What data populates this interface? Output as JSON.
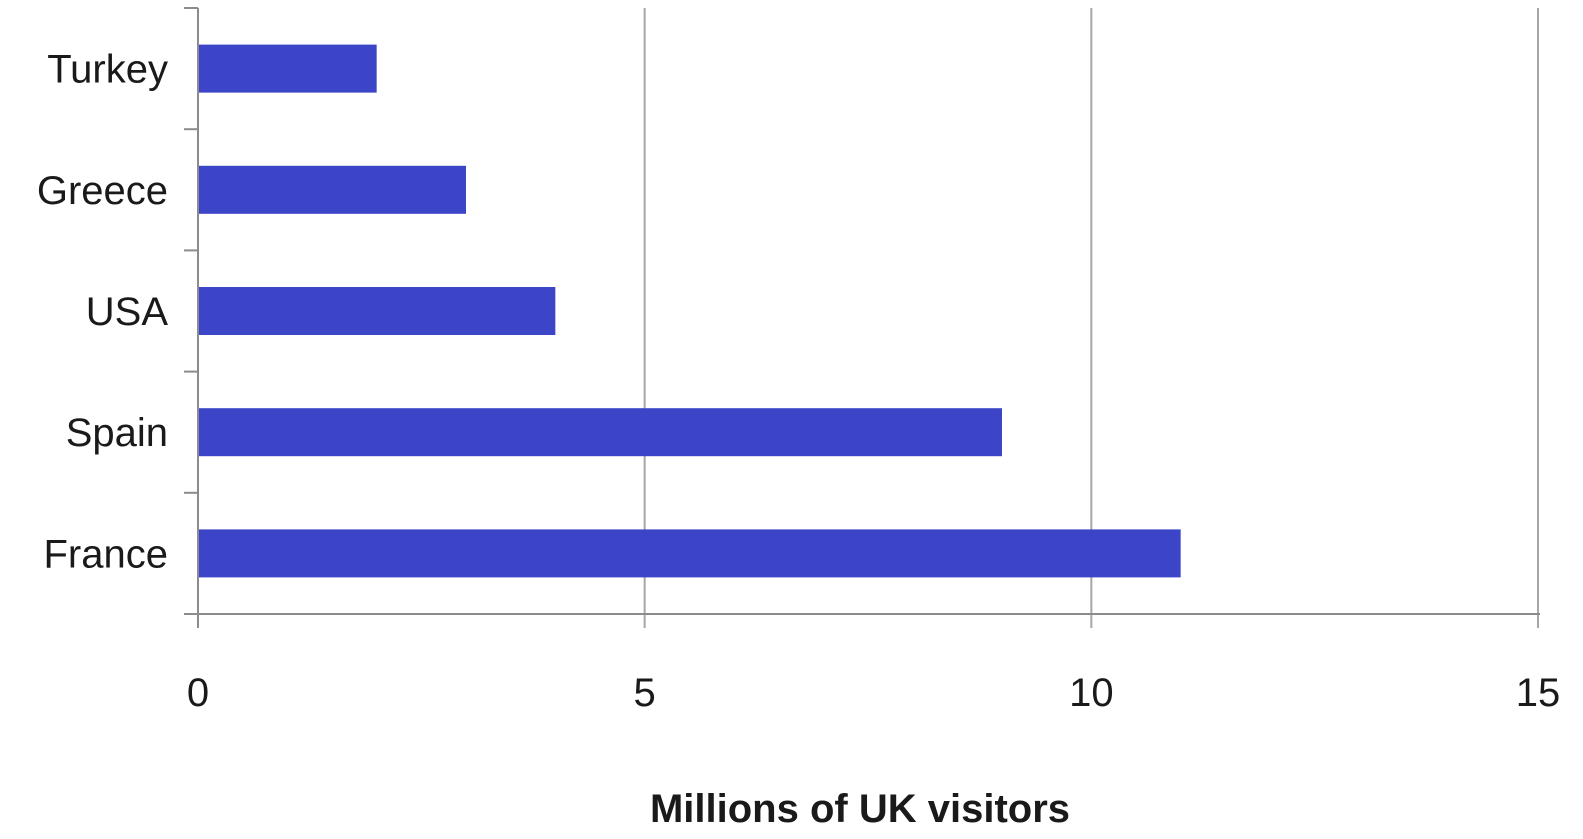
{
  "chart_data": {
    "type": "bar",
    "orientation": "horizontal",
    "categories": [
      "France",
      "Spain",
      "USA",
      "Greece",
      "Turkey"
    ],
    "values": [
      11,
      9,
      4,
      3,
      2
    ],
    "title": "",
    "xlabel": "Millions of UK visitors",
    "ylabel": "",
    "xlim": [
      0,
      15
    ],
    "x_ticks": [
      "0",
      "5",
      "10",
      "15"
    ],
    "grid": "vertical",
    "legend": "none",
    "bar_color": "#3c44c8",
    "grid_color": "#a6a6a6",
    "axis_color": "#8c8c8c"
  }
}
